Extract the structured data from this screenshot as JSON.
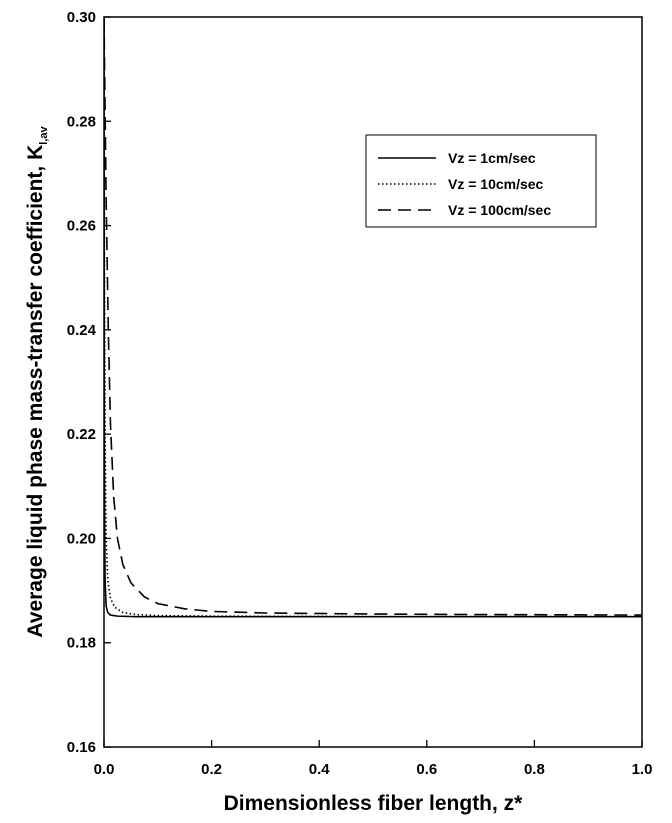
{
  "chart_data": {
    "type": "line",
    "xlabel": "Dimensionless fiber length, z*",
    "ylabel_main": "Average liquid phase mass-transfer coefficient, K",
    "ylabel_sub": "l,av",
    "xlim": [
      0.0,
      1.0
    ],
    "ylim": [
      0.16,
      0.3
    ],
    "x_ticks": [
      "0.0",
      "0.2",
      "0.4",
      "0.6",
      "0.8",
      "1.0"
    ],
    "y_ticks": [
      "0.16",
      "0.18",
      "0.20",
      "0.22",
      "0.24",
      "0.26",
      "0.28",
      "0.30"
    ],
    "legend_position": "upper-right",
    "grid": false,
    "series": [
      {
        "name": "Vz = 1cm/sec",
        "style": "solid",
        "points": [
          [
            0.0,
            0.3
          ],
          [
            0.0005,
            0.24
          ],
          [
            0.001,
            0.205
          ],
          [
            0.002,
            0.192
          ],
          [
            0.004,
            0.187
          ],
          [
            0.007,
            0.1858
          ],
          [
            0.012,
            0.1853
          ],
          [
            0.025,
            0.1851
          ],
          [
            0.06,
            0.185
          ],
          [
            0.2,
            0.185
          ],
          [
            0.6,
            0.185
          ],
          [
            1.0,
            0.185
          ]
        ]
      },
      {
        "name": "Vz = 10cm/sec",
        "style": "dotted",
        "points": [
          [
            0.0,
            0.3
          ],
          [
            0.001,
            0.25
          ],
          [
            0.002,
            0.22
          ],
          [
            0.004,
            0.2
          ],
          [
            0.007,
            0.192
          ],
          [
            0.012,
            0.1885
          ],
          [
            0.02,
            0.1868
          ],
          [
            0.035,
            0.1858
          ],
          [
            0.06,
            0.1854
          ],
          [
            0.1,
            0.1852
          ],
          [
            0.2,
            0.1851
          ],
          [
            0.5,
            0.185
          ],
          [
            1.0,
            0.185
          ]
        ]
      },
      {
        "name": "Vz = 100cm/sec",
        "style": "dashed",
        "points": [
          [
            0.0,
            0.3
          ],
          [
            0.004,
            0.265
          ],
          [
            0.008,
            0.24
          ],
          [
            0.012,
            0.222
          ],
          [
            0.018,
            0.208
          ],
          [
            0.025,
            0.2
          ],
          [
            0.035,
            0.195
          ],
          [
            0.05,
            0.1915
          ],
          [
            0.075,
            0.1888
          ],
          [
            0.1,
            0.1875
          ],
          [
            0.15,
            0.1865
          ],
          [
            0.2,
            0.186
          ],
          [
            0.3,
            0.1857
          ],
          [
            0.5,
            0.1855
          ],
          [
            0.7,
            0.1854
          ],
          [
            1.0,
            0.1853
          ]
        ]
      }
    ]
  }
}
